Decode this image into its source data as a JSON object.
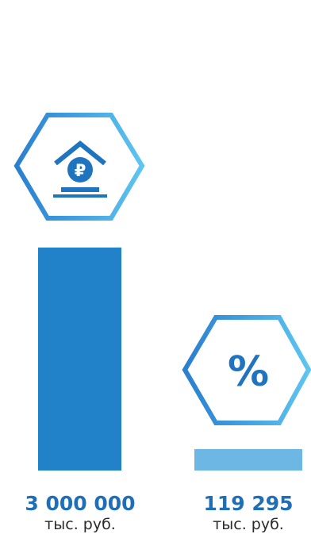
{
  "chart_data": {
    "type": "bar",
    "categories": [
      "deposit",
      "interest"
    ],
    "values": [
      3000000,
      119295
    ],
    "value_labels": [
      "3 000 000",
      "119 295"
    ],
    "unit_labels": [
      "тыс. руб.",
      "тыс. руб."
    ],
    "icons": [
      "house-ruble-icon",
      "percent-icon"
    ],
    "icon_text": {
      "ruble_sign": "₽",
      "percent_sign": "%"
    },
    "bar_colors": [
      "#2181c9",
      "#6db7e4"
    ],
    "label_color": "#1e6fb8",
    "unit_color": "#2a2a2a",
    "hexagon_gradient": [
      "#2a7fcf",
      "#5ec4f0"
    ],
    "icon_color": "#1f74c0",
    "xlabel": "",
    "ylabel": "",
    "grid": false,
    "legend": "none"
  }
}
